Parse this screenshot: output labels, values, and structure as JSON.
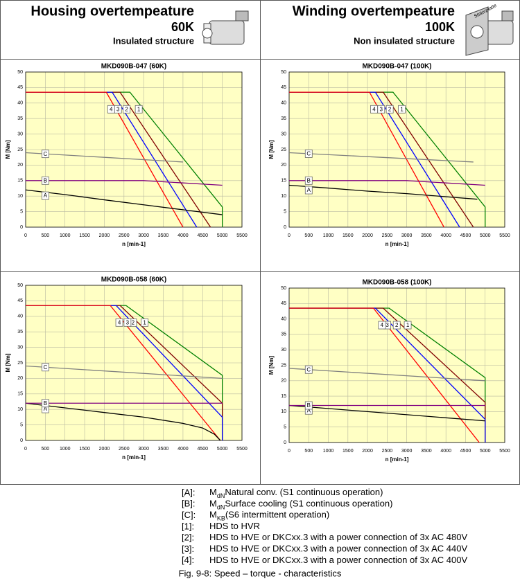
{
  "header": {
    "left": {
      "title": "Housing overtempeature",
      "temp": "60K",
      "structure": "Insulated structure"
    },
    "right": {
      "title": "Winding overtempeature",
      "temp": "100K",
      "structure": "Non insulated structure",
      "plate": "Statorplatte"
    }
  },
  "chart_data": [
    {
      "type": "line",
      "title": "MKD090B-047 (60K)",
      "xlabel": "n [min-1]",
      "ylabel": "M [Nm]",
      "xlim": [
        0,
        5500
      ],
      "ylim": [
        0,
        50
      ],
      "xticks": [
        0,
        500,
        1000,
        1500,
        2000,
        2500,
        3000,
        3500,
        4000,
        4500,
        5000,
        5500
      ],
      "yticks": [
        0,
        5,
        10,
        15,
        20,
        25,
        30,
        35,
        40,
        45,
        50
      ],
      "grid": true,
      "series": [
        {
          "name": "1",
          "color": "#008000",
          "x": [
            0,
            2650,
            5000,
            5000
          ],
          "values": [
            43.5,
            43.5,
            6.5,
            0
          ]
        },
        {
          "name": "2",
          "color": "#800000",
          "x": [
            0,
            2400,
            4700
          ],
          "values": [
            43.5,
            43.5,
            0
          ]
        },
        {
          "name": "3",
          "color": "#0000ff",
          "x": [
            0,
            2200,
            4350
          ],
          "values": [
            43.5,
            43.5,
            0
          ]
        },
        {
          "name": "4",
          "color": "#ff0000",
          "x": [
            0,
            2050,
            4000
          ],
          "values": [
            43.5,
            43.5,
            0
          ]
        },
        {
          "name": "A",
          "color": "#000000",
          "x": [
            0,
            1000,
            2000,
            3000,
            4000,
            5000
          ],
          "values": [
            12,
            10.5,
            8.8,
            7.2,
            5.6,
            4
          ]
        },
        {
          "name": "B",
          "color": "#800080",
          "x": [
            0,
            3000,
            5000
          ],
          "values": [
            15,
            15,
            13.5
          ]
        },
        {
          "name": "C",
          "color": "#808080",
          "x": [
            0,
            4000
          ],
          "values": [
            24,
            21
          ]
        }
      ]
    },
    {
      "type": "line",
      "title": "MKD090B-047 (100K)",
      "xlabel": "n [min-1]",
      "ylabel": "M [Nm]",
      "xlim": [
        0,
        5500
      ],
      "ylim": [
        0,
        50
      ],
      "xticks": [
        0,
        500,
        1000,
        1500,
        2000,
        2500,
        3000,
        3500,
        4000,
        4500,
        5000,
        5500
      ],
      "yticks": [
        0,
        5,
        10,
        15,
        20,
        25,
        30,
        35,
        40,
        45,
        50
      ],
      "grid": true,
      "series": [
        {
          "name": "1",
          "color": "#008000",
          "x": [
            0,
            2650,
            5000,
            5000
          ],
          "values": [
            43.5,
            43.5,
            6.5,
            0
          ]
        },
        {
          "name": "2",
          "color": "#800000",
          "x": [
            0,
            2400,
            4700
          ],
          "values": [
            43.5,
            43.5,
            0
          ]
        },
        {
          "name": "3",
          "color": "#0000ff",
          "x": [
            0,
            2200,
            4350
          ],
          "values": [
            43.5,
            43.5,
            0
          ]
        },
        {
          "name": "4",
          "color": "#ff0000",
          "x": [
            0,
            2050,
            3950
          ],
          "values": [
            43.5,
            43.5,
            0
          ]
        },
        {
          "name": "A",
          "color": "#000000",
          "x": [
            0,
            1000,
            2000,
            3000,
            4000,
            4800
          ],
          "values": [
            13.5,
            12.6,
            11.6,
            10.8,
            9.8,
            9
          ]
        },
        {
          "name": "B",
          "color": "#800080",
          "x": [
            0,
            3000,
            5000
          ],
          "values": [
            15,
            15,
            13.5
          ]
        },
        {
          "name": "C",
          "color": "#808080",
          "x": [
            0,
            4700
          ],
          "values": [
            24,
            21
          ]
        }
      ]
    },
    {
      "type": "line",
      "title": "MKD090B-058 (60K)",
      "xlabel": "n [min-1]",
      "ylabel": "M [Nm]",
      "xlim": [
        0,
        5500
      ],
      "ylim": [
        0,
        50
      ],
      "xticks": [
        0,
        500,
        1000,
        1500,
        2000,
        2500,
        3000,
        3500,
        4000,
        4500,
        5000,
        5500
      ],
      "yticks": [
        0,
        5,
        10,
        15,
        20,
        25,
        30,
        35,
        40,
        45,
        50
      ],
      "grid": true,
      "series": [
        {
          "name": "1",
          "color": "#008000",
          "x": [
            0,
            2550,
            5000,
            5000
          ],
          "values": [
            43.5,
            43.5,
            21,
            0
          ]
        },
        {
          "name": "2",
          "color": "#800000",
          "x": [
            0,
            2400,
            5000,
            5000
          ],
          "values": [
            43.5,
            43.5,
            12,
            0
          ]
        },
        {
          "name": "3",
          "color": "#0000ff",
          "x": [
            0,
            2300,
            5000,
            5000
          ],
          "values": [
            43.5,
            43.5,
            7.5,
            0
          ]
        },
        {
          "name": "4",
          "color": "#ff0000",
          "x": [
            0,
            2150,
            4950
          ],
          "values": [
            43.5,
            43.5,
            0
          ]
        },
        {
          "name": "A",
          "color": "#000000",
          "x": [
            0,
            1000,
            2000,
            3000,
            4000,
            4500,
            4800,
            4950
          ],
          "values": [
            12,
            10.5,
            9,
            7.5,
            5.5,
            4,
            2,
            0
          ]
        },
        {
          "name": "B",
          "color": "#800080",
          "x": [
            0,
            5000
          ],
          "values": [
            12,
            12
          ]
        },
        {
          "name": "C",
          "color": "#808080",
          "x": [
            0,
            5000
          ],
          "values": [
            24,
            20
          ]
        }
      ]
    },
    {
      "type": "line",
      "title": "MKD090B-058 (100K)",
      "xlabel": "n [min-1]",
      "ylabel": "M [Nm]",
      "xlim": [
        0,
        5500
      ],
      "ylim": [
        0,
        50
      ],
      "xticks": [
        0,
        500,
        1000,
        1500,
        2000,
        2500,
        3000,
        3500,
        4000,
        4500,
        5000,
        5500
      ],
      "yticks": [
        0,
        5,
        10,
        15,
        20,
        25,
        30,
        35,
        40,
        45,
        50
      ],
      "grid": true,
      "series": [
        {
          "name": "1",
          "color": "#008000",
          "x": [
            0,
            2550,
            5000,
            5000
          ],
          "values": [
            43.5,
            43.5,
            21,
            0
          ]
        },
        {
          "name": "2",
          "color": "#800000",
          "x": [
            0,
            2400,
            5000,
            5000
          ],
          "values": [
            43.5,
            43.5,
            13,
            0
          ]
        },
        {
          "name": "3",
          "color": "#0000ff",
          "x": [
            0,
            2200,
            5000,
            5000
          ],
          "values": [
            43.5,
            43.5,
            7.5,
            0
          ]
        },
        {
          "name": "4",
          "color": "#ff0000",
          "x": [
            0,
            2150,
            4850
          ],
          "values": [
            43.5,
            43.5,
            0
          ]
        },
        {
          "name": "A",
          "color": "#000000",
          "x": [
            0,
            5000
          ],
          "values": [
            12,
            7
          ]
        },
        {
          "name": "B",
          "color": "#800080",
          "x": [
            0,
            5000
          ],
          "values": [
            12,
            12
          ]
        },
        {
          "name": "C",
          "color": "#808080",
          "x": [
            0,
            5000
          ],
          "values": [
            24,
            20
          ]
        }
      ]
    }
  ],
  "notes": [
    {
      "key": "[A]:",
      "symbol": "M",
      "sub": "dN",
      "text": "Natural conv. (S1 continuous operation)"
    },
    {
      "key": "[B]:",
      "symbol": "M",
      "sub": "dN",
      "text": "Surface cooling (S1 continuous operation)"
    },
    {
      "key": "[C]:",
      "symbol": "M",
      "sub": "KB",
      "text": "(S6 intermittent operation)"
    },
    {
      "key": "[1]:",
      "text": "HDS to HVR"
    },
    {
      "key": "[2]:",
      "text": "HDS to HVE or DKCxx.3 with a power connection of 3x AC 480V"
    },
    {
      "key": "[3]:",
      "text": "HDS to HVE or DKCxx.3 with a power connection of 3x AC 440V"
    },
    {
      "key": "[4]:",
      "text": "HDS to HVE or DKCxx.3 with a power connection of 3x AC 400V"
    }
  ],
  "caption": "Fig. 9-8: Speed – torque - characteristics"
}
